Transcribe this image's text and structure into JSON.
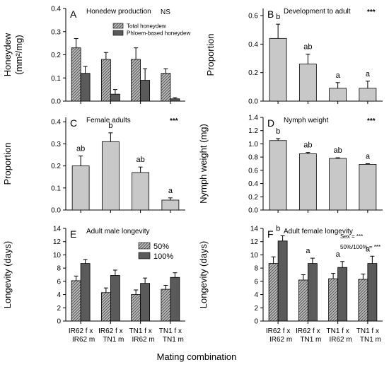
{
  "figure": {
    "x_title": "Mating combination",
    "categories_lines": [
      [
        "IR62 f  x",
        "IR62 m"
      ],
      [
        "IR62 f  x",
        "TN1 m"
      ],
      [
        "TN1 f  x",
        "IR62 m"
      ],
      [
        "TN1 f  x",
        "TN1 m"
      ]
    ],
    "colors": {
      "light_gray": "#c8c8c8",
      "dark_gray": "#5a5a5a",
      "hatch_bg": "#bdbdbd",
      "hatch_line": "#555555"
    }
  },
  "chart_data": [
    {
      "id": "A",
      "type": "bar",
      "letter": "A",
      "title": "Honedew production",
      "significance": "NS",
      "ylabel_lines": [
        "Honeydew",
        "(mm²/mg)"
      ],
      "ylim": [
        0,
        0.4
      ],
      "yticks": [
        "0.0",
        "0.1",
        "0.2",
        "0.3",
        "0.4"
      ],
      "categories": [
        "IR62 f x IR62 m",
        "IR62 f x TN1 m",
        "TN1 f x IR62 m",
        "TN1 f x TN1 m"
      ],
      "series": [
        {
          "name": "Total honeydew",
          "style": "hatch",
          "values": [
            0.23,
            0.18,
            0.18,
            0.12
          ],
          "errors": [
            0.04,
            0.03,
            0.05,
            0.02
          ]
        },
        {
          "name": "Phloem-based honeydew",
          "style": "dark",
          "values": [
            0.12,
            0.03,
            0.09,
            0.01
          ],
          "errors": [
            0.03,
            0.02,
            0.05,
            0.005
          ]
        }
      ],
      "letters": [],
      "legend": "top-right"
    },
    {
      "id": "B",
      "type": "bar",
      "letter": "B",
      "title": "Development to adult",
      "significance": "***",
      "ylabel_lines": [
        "Proportion"
      ],
      "ylim": [
        0,
        0.65
      ],
      "yticks": [
        "0.0",
        "0.2",
        "0.4",
        "0.6"
      ],
      "categories": [
        "IR62 f x IR62 m",
        "IR62 f x TN1 m",
        "TN1 f x IR62 m",
        "TN1 f x TN1 m"
      ],
      "series": [
        {
          "style": "light",
          "values": [
            0.44,
            0.26,
            0.09,
            0.09
          ],
          "errors": [
            0.1,
            0.07,
            0.04,
            0.05
          ]
        }
      ],
      "letters": [
        "b",
        "ab",
        "a",
        "a"
      ]
    },
    {
      "id": "C",
      "type": "bar",
      "letter": "C",
      "title": "Female adults",
      "significance": "***",
      "ylabel_lines": [
        "Proportion"
      ],
      "ylim": [
        0,
        0.42
      ],
      "yticks": [
        "0.0",
        "0.1",
        "0.2",
        "0.3",
        "0.4"
      ],
      "categories": [
        "IR62 f x IR62 m",
        "IR62 f x TN1 m",
        "TN1 f x IR62 m",
        "TN1 f x TN1 m"
      ],
      "series": [
        {
          "style": "light",
          "values": [
            0.2,
            0.31,
            0.17,
            0.045
          ],
          "errors": [
            0.045,
            0.04,
            0.025,
            0.01
          ]
        }
      ],
      "letters": [
        "ab",
        "b",
        "ab",
        "a"
      ]
    },
    {
      "id": "D",
      "type": "bar",
      "letter": "D",
      "title": "Nymph weight",
      "significance": "***",
      "ylabel_lines": [
        "Nymph weight (mg)"
      ],
      "ylim": [
        0,
        1.4
      ],
      "yticks": [
        "0.0",
        "0.2",
        "0.4",
        "0.6",
        "0.8",
        "1.0",
        "1.2",
        "1.4"
      ],
      "categories": [
        "IR62 f x IR62 m",
        "IR62 f x TN1 m",
        "TN1 f x IR62 m",
        "TN1 f x TN1 m"
      ],
      "series": [
        {
          "style": "light",
          "values": [
            1.05,
            0.85,
            0.78,
            0.69
          ],
          "errors": [
            0.03,
            0.02,
            0.01,
            0.01
          ]
        }
      ],
      "letters": [
        "b",
        "ab",
        "ab",
        "a"
      ]
    },
    {
      "id": "E",
      "type": "bar",
      "letter": "E",
      "title": "Adult male longevity",
      "significance": "",
      "ylabel_lines": [
        "Longevity (days)"
      ],
      "ylim": [
        0,
        14
      ],
      "yticks": [
        "0",
        "2",
        "4",
        "6",
        "8",
        "10",
        "12",
        "14"
      ],
      "categories": [
        "IR62 f x IR62 m",
        "IR62 f x TN1 m",
        "TN1 f x IR62 m",
        "TN1 f x TN1 m"
      ],
      "series": [
        {
          "name": "50%",
          "style": "hatch",
          "values": [
            6.1,
            4.3,
            4.0,
            4.8
          ],
          "errors": [
            0.7,
            0.7,
            0.7,
            0.6
          ]
        },
        {
          "name": "100%",
          "style": "dark",
          "values": [
            8.7,
            6.9,
            5.7,
            6.6
          ],
          "errors": [
            0.6,
            0.8,
            0.8,
            0.7
          ]
        }
      ],
      "letters": [],
      "legend": "upper-right"
    },
    {
      "id": "F",
      "type": "bar",
      "letter": "F",
      "title": "Adult female longevity",
      "significance": "",
      "ylabel_lines": [
        "Longevity (days)"
      ],
      "ylim": [
        0,
        14
      ],
      "yticks": [
        "0",
        "2",
        "4",
        "6",
        "8",
        "10",
        "12",
        "14"
      ],
      "categories": [
        "IR62 f x IR62 m",
        "IR62 f x TN1 m",
        "TN1 f x IR62 m",
        "TN1 f x TN1 m"
      ],
      "series": [
        {
          "style": "hatch",
          "values": [
            8.7,
            6.2,
            6.4,
            6.3
          ],
          "errors": [
            1.0,
            0.8,
            0.8,
            0.8
          ]
        },
        {
          "style": "dark",
          "values": [
            12.1,
            8.7,
            8.1,
            8.7
          ],
          "errors": [
            0.8,
            0.8,
            0.9,
            1.1
          ]
        }
      ],
      "letters": [
        "b",
        "a",
        "a",
        "a"
      ],
      "notes": [
        "Sex =  ***",
        "50%/100% =  ***"
      ]
    }
  ]
}
